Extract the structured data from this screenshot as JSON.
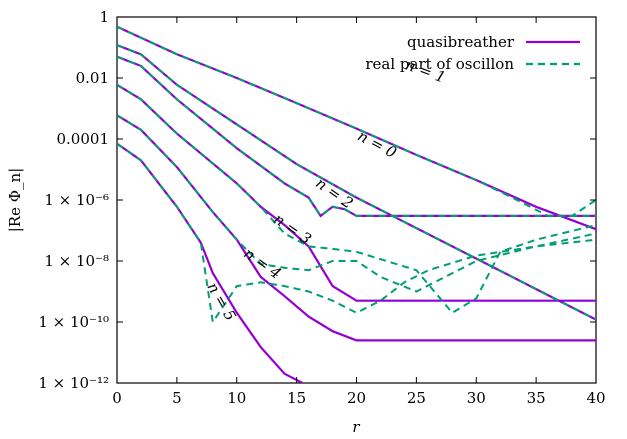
{
  "chart_data": {
    "type": "line",
    "title": "",
    "xlabel": "r",
    "ylabel": "|Re Φ_n|",
    "xlim": [
      0,
      40
    ],
    "ylim": [
      1e-12,
      1
    ],
    "yscale": "log",
    "grid": false,
    "legend_position": "top-right",
    "x_ticks": [
      0,
      5,
      10,
      15,
      20,
      25,
      30,
      35,
      40
    ],
    "x_tick_labels": [
      "0",
      "5",
      "10",
      "15",
      "20",
      "25",
      "30",
      "35",
      "40"
    ],
    "y_ticks": [
      1,
      0.01,
      0.0001,
      1e-06,
      1e-08,
      1e-10,
      1e-12
    ],
    "y_tick_labels": [
      "1",
      "0.01",
      "0.0001",
      "1 × 10⁻⁶",
      "1 × 10⁻⁸",
      "1 × 10⁻¹⁰",
      "1 × 10⁻¹²"
    ],
    "colors": {
      "quasibreather": "#9400d3",
      "oscillon": "#009e73"
    },
    "legend": [
      {
        "name": "quasibreather",
        "style": "solid",
        "color": "#9400d3"
      },
      {
        "name": "real part of oscillon",
        "style": "dashed",
        "color": "#009e73"
      }
    ],
    "annotations": [
      {
        "text": "n = 1",
        "x": 24,
        "y": 0.02
      },
      {
        "text": "n = 0",
        "x": 20,
        "y": 0.0001
      },
      {
        "text": "n = 2",
        "x": 16.5,
        "y": 3e-06
      },
      {
        "text": "n = 3",
        "x": 13,
        "y": 2e-07
      },
      {
        "text": "n = 4",
        "x": 10.5,
        "y": 1.5e-08
      },
      {
        "text": "n = 5",
        "x": 7.5,
        "y": 1.5e-09
      }
    ],
    "series": [
      {
        "name": "quasibreather",
        "mode": "n = 1",
        "x": [
          0,
          5,
          10,
          15,
          20,
          25,
          30,
          35,
          40
        ],
        "y": [
          0.48,
          0.06,
          0.01,
          0.0015,
          0.00022,
          3e-05,
          4.5e-06,
          6e-07,
          1.1e-07
        ]
      },
      {
        "name": "real part of oscillon",
        "mode": "n = 1",
        "x": [
          0,
          5,
          10,
          15,
          20,
          25,
          30,
          33,
          36,
          38,
          40
        ],
        "y": [
          0.48,
          0.06,
          0.01,
          0.0015,
          0.00022,
          3e-05,
          4.5e-06,
          1.2e-06,
          3e-07,
          3e-07,
          1e-06
        ]
      },
      {
        "name": "quasibreather",
        "mode": "n = 0",
        "x": [
          0,
          2,
          5,
          10,
          15,
          20,
          25,
          30,
          35,
          40
        ],
        "y": [
          0.12,
          0.06,
          0.006,
          0.0003,
          1.5e-05,
          1.2e-06,
          1.2e-07,
          1.2e-08,
          1.2e-09,
          1.2e-10
        ]
      },
      {
        "name": "real part of oscillon",
        "mode": "n = 0",
        "x": [
          0,
          2,
          5,
          10,
          15,
          20,
          25,
          30,
          35,
          40
        ],
        "y": [
          0.12,
          0.06,
          0.006,
          0.0003,
          1.5e-05,
          1.2e-06,
          1.2e-07,
          1.2e-08,
          1.2e-09,
          1.2e-10
        ]
      },
      {
        "name": "quasibreather",
        "mode": "n = 2",
        "x": [
          0,
          2,
          5,
          10,
          14,
          16,
          17,
          18,
          19,
          20,
          25,
          30,
          35,
          40
        ],
        "y": [
          0.05,
          0.025,
          0.002,
          5e-05,
          3.5e-06,
          1.2e-06,
          3e-07,
          6e-07,
          5e-07,
          3e-07,
          3e-07,
          3e-07,
          3e-07,
          3e-07
        ]
      },
      {
        "name": "real part of oscillon",
        "mode": "n = 2",
        "x": [
          0,
          2,
          5,
          10,
          14,
          16,
          17,
          18,
          19,
          20,
          25,
          30,
          35,
          40
        ],
        "y": [
          0.05,
          0.025,
          0.002,
          5e-05,
          3.5e-06,
          1.2e-06,
          3e-07,
          6e-07,
          5e-07,
          3e-07,
          3e-07,
          3e-07,
          3e-07,
          3e-07
        ]
      },
      {
        "name": "quasibreather",
        "mode": "n = 3",
        "x": [
          0,
          2,
          5,
          10,
          12,
          14,
          16,
          18,
          20,
          25,
          30,
          35,
          40
        ],
        "y": [
          0.006,
          0.002,
          0.00015,
          3.5e-06,
          6e-07,
          1.5e-07,
          3e-08,
          1.5e-09,
          5e-10,
          5e-10,
          5e-10,
          5e-10,
          5e-10
        ]
      },
      {
        "name": "real part of oscillon",
        "mode": "n = 3",
        "x": [
          0,
          2,
          5,
          10,
          12,
          14,
          16,
          18,
          20,
          25,
          28,
          30,
          32,
          35,
          40
        ],
        "y": [
          0.006,
          0.002,
          0.00015,
          3.5e-06,
          6e-07,
          8e-08,
          3e-08,
          2.5e-08,
          2e-08,
          5e-09,
          2e-10,
          6e-10,
          2e-08,
          5e-08,
          1.5e-07
        ]
      },
      {
        "name": "quasibreather",
        "mode": "n = 4",
        "x": [
          0,
          2,
          5,
          8,
          10,
          12,
          14,
          16,
          18,
          20,
          25,
          30,
          35,
          40
        ],
        "y": [
          0.0006,
          0.0002,
          1.2e-05,
          4e-07,
          5e-08,
          3e-09,
          7e-10,
          1.5e-10,
          5e-11,
          2.5e-11,
          2.5e-11,
          2.5e-11,
          2.5e-11,
          2.5e-11
        ]
      },
      {
        "name": "real part of oscillon",
        "mode": "n = 4",
        "x": [
          0,
          2,
          5,
          8,
          10,
          12,
          14,
          16,
          18,
          20,
          22,
          25,
          30,
          35,
          40
        ],
        "y": [
          0.0006,
          0.0002,
          1.2e-05,
          4e-07,
          5e-08,
          8e-09,
          6e-09,
          5e-09,
          1e-08,
          1e-08,
          3e-09,
          1e-09,
          1e-08,
          3e-08,
          8e-08
        ]
      },
      {
        "name": "quasibreather",
        "mode": "n = 5",
        "x": [
          0,
          2,
          5,
          7,
          8,
          10,
          12,
          14,
          15.5
        ],
        "y": [
          7e-05,
          2e-05,
          6e-07,
          4e-08,
          4e-09,
          2e-10,
          1.5e-11,
          2e-12,
          1e-12
        ]
      },
      {
        "name": "real part of oscillon",
        "mode": "n = 5",
        "x": [
          0,
          2,
          5,
          7,
          8,
          10,
          12,
          14,
          16,
          18,
          20,
          22,
          24,
          26,
          30,
          35,
          40
        ],
        "y": [
          7e-05,
          2e-05,
          6e-07,
          4e-08,
          1e-10,
          1.5e-09,
          2e-09,
          1.5e-09,
          1e-09,
          5e-10,
          2e-10,
          5e-10,
          2e-09,
          5e-09,
          1.5e-08,
          3e-08,
          5e-08
        ]
      }
    ]
  }
}
